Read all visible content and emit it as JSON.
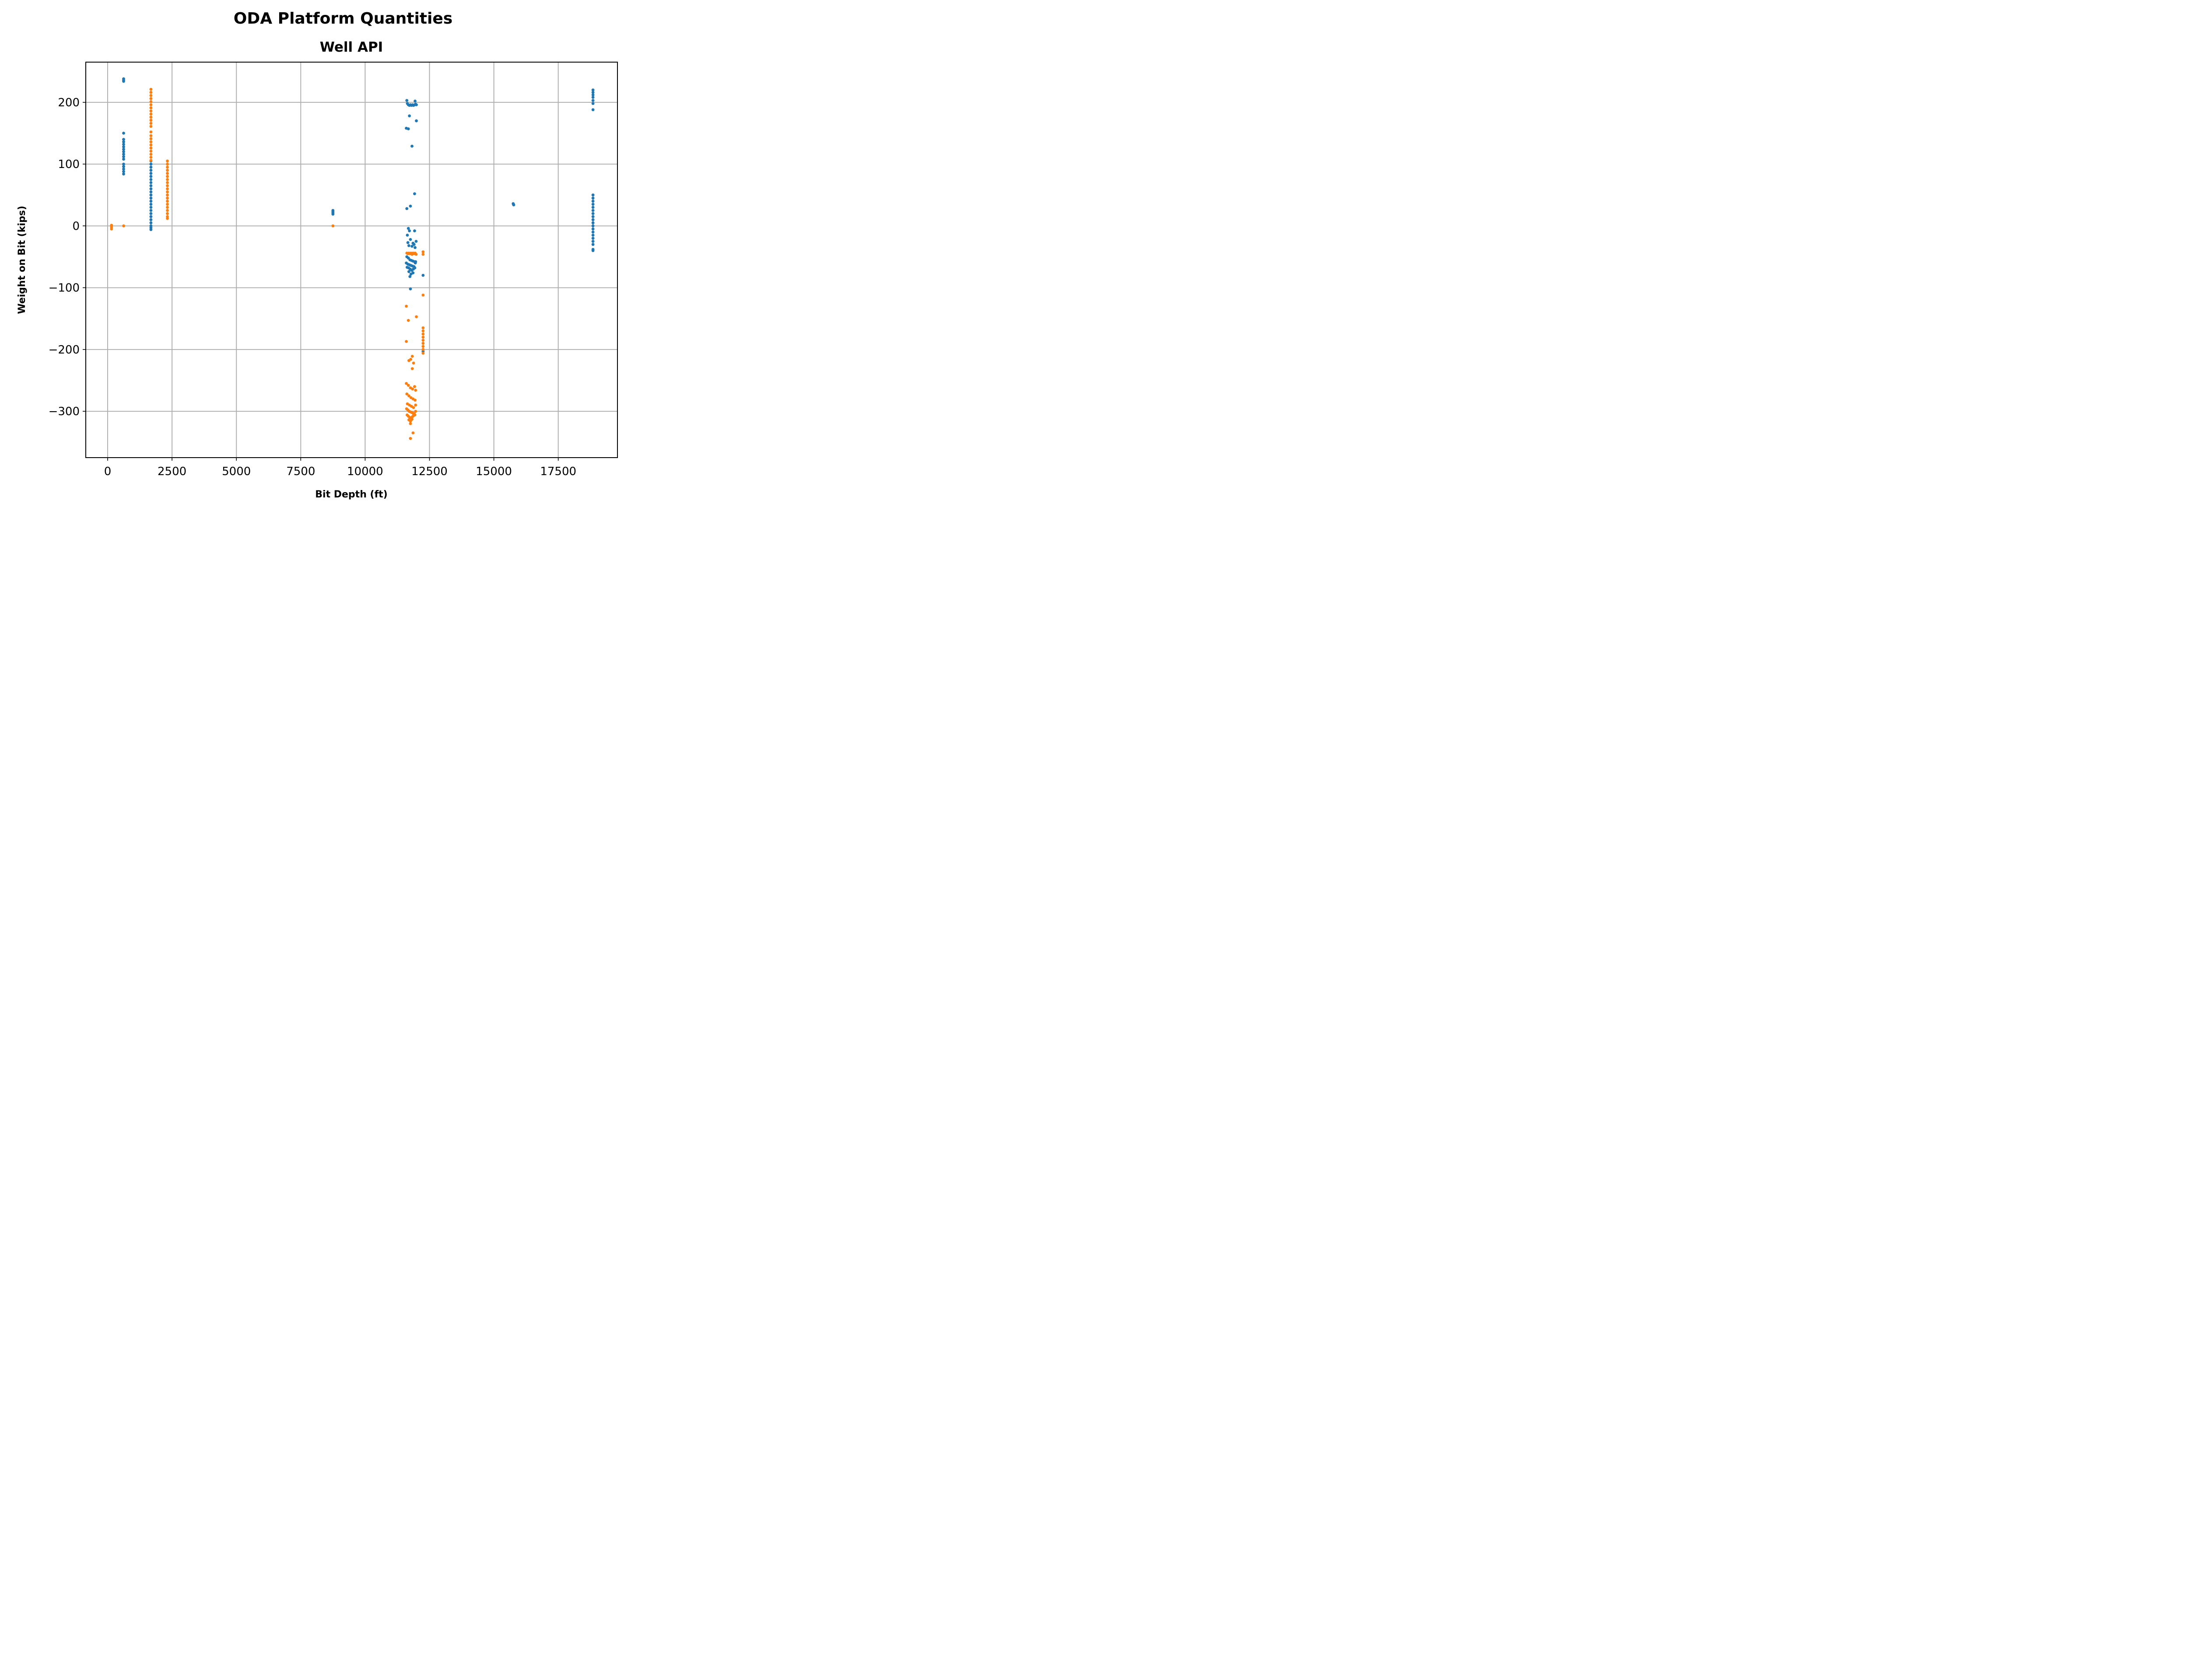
{
  "chart_data": {
    "type": "scatter",
    "suptitle": "ODA Platform Quantities",
    "title": "Well API",
    "xlabel": "Bit Depth (ft)",
    "ylabel": "Weight on Bit (kips)",
    "xlim": [
      -850,
      19800
    ],
    "ylim": [
      -375,
      265
    ],
    "xticks": [
      0,
      2500,
      5000,
      7500,
      10000,
      12500,
      15000,
      17500
    ],
    "xtick_labels": [
      "0",
      "2500",
      "5000",
      "7500",
      "10000",
      "12500",
      "15000",
      "17500"
    ],
    "yticks": [
      -300,
      -200,
      -100,
      0,
      100,
      200
    ],
    "ytick_labels": [
      "−300",
      "−200",
      "−100",
      "0",
      "100",
      "200"
    ],
    "grid": true,
    "legend": null,
    "series": [
      {
        "color": "#1f77b4",
        "points": [
          [
            620,
            238
          ],
          [
            620,
            236
          ],
          [
            620,
            234
          ],
          [
            620,
            150
          ],
          [
            620,
            140
          ],
          [
            620,
            136
          ],
          [
            620,
            132
          ],
          [
            620,
            128
          ],
          [
            620,
            124
          ],
          [
            620,
            120
          ],
          [
            620,
            116
          ],
          [
            620,
            112
          ],
          [
            620,
            108
          ],
          [
            620,
            100
          ],
          [
            620,
            96
          ],
          [
            620,
            92
          ],
          [
            620,
            88
          ],
          [
            620,
            84
          ],
          [
            1680,
            105
          ],
          [
            1680,
            100
          ],
          [
            1680,
            95
          ],
          [
            1680,
            90
          ],
          [
            1680,
            85
          ],
          [
            1680,
            80
          ],
          [
            1680,
            75
          ],
          [
            1680,
            70
          ],
          [
            1680,
            65
          ],
          [
            1680,
            60
          ],
          [
            1680,
            55
          ],
          [
            1680,
            50
          ],
          [
            1680,
            45
          ],
          [
            1680,
            40
          ],
          [
            1680,
            35
          ],
          [
            1680,
            30
          ],
          [
            1680,
            25
          ],
          [
            1680,
            20
          ],
          [
            1680,
            15
          ],
          [
            1680,
            10
          ],
          [
            1680,
            5
          ],
          [
            1680,
            0
          ],
          [
            1680,
            -3
          ],
          [
            1680,
            -6
          ],
          [
            8750,
            25
          ],
          [
            8750,
            23
          ],
          [
            8750,
            21
          ],
          [
            8750,
            19
          ],
          [
            11620,
            203
          ],
          [
            11640,
            198
          ],
          [
            11680,
            196
          ],
          [
            11720,
            195
          ],
          [
            11760,
            196
          ],
          [
            11800,
            195
          ],
          [
            11840,
            196
          ],
          [
            11880,
            195
          ],
          [
            11920,
            196
          ],
          [
            11940,
            202
          ],
          [
            11960,
            197
          ],
          [
            11990,
            196
          ],
          [
            11720,
            178
          ],
          [
            11990,
            170
          ],
          [
            11600,
            158
          ],
          [
            11680,
            157
          ],
          [
            11820,
            129
          ],
          [
            11920,
            52
          ],
          [
            11760,
            32
          ],
          [
            11620,
            28
          ],
          [
            11680,
            -4
          ],
          [
            11720,
            -8
          ],
          [
            11920,
            -8
          ],
          [
            11640,
            -15
          ],
          [
            11760,
            -22
          ],
          [
            11980,
            -25
          ],
          [
            11660,
            -27
          ],
          [
            11860,
            -28
          ],
          [
            11900,
            -30
          ],
          [
            11700,
            -32
          ],
          [
            11820,
            -33
          ],
          [
            11940,
            -35
          ],
          [
            11620,
            -50
          ],
          [
            11680,
            -52
          ],
          [
            11740,
            -55
          ],
          [
            11800,
            -56
          ],
          [
            11860,
            -57
          ],
          [
            11920,
            -58
          ],
          [
            11960,
            -58
          ],
          [
            11600,
            -60
          ],
          [
            11660,
            -62
          ],
          [
            11720,
            -63
          ],
          [
            11780,
            -64
          ],
          [
            11840,
            -65
          ],
          [
            11900,
            -66
          ],
          [
            11950,
            -60
          ],
          [
            11630,
            -67
          ],
          [
            11690,
            -68
          ],
          [
            11750,
            -70
          ],
          [
            11810,
            -72
          ],
          [
            11870,
            -70
          ],
          [
            11930,
            -68
          ],
          [
            11700,
            -74
          ],
          [
            11780,
            -78
          ],
          [
            11860,
            -76
          ],
          [
            11740,
            -82
          ],
          [
            12250,
            -80
          ],
          [
            11760,
            -102
          ],
          [
            12250,
            -203
          ],
          [
            15750,
            36
          ],
          [
            15760,
            35
          ],
          [
            15770,
            34
          ],
          [
            18850,
            220
          ],
          [
            18850,
            216
          ],
          [
            18850,
            212
          ],
          [
            18850,
            208
          ],
          [
            18850,
            203
          ],
          [
            18850,
            198
          ],
          [
            18850,
            188
          ],
          [
            18850,
            50
          ],
          [
            18850,
            45
          ],
          [
            18850,
            40
          ],
          [
            18850,
            35
          ],
          [
            18850,
            30
          ],
          [
            18850,
            25
          ],
          [
            18850,
            20
          ],
          [
            18850,
            15
          ],
          [
            18850,
            10
          ],
          [
            18850,
            5
          ],
          [
            18850,
            0
          ],
          [
            18850,
            -5
          ],
          [
            18850,
            -10
          ],
          [
            18850,
            -15
          ],
          [
            18850,
            -20
          ],
          [
            18850,
            -25
          ],
          [
            18850,
            -30
          ],
          [
            18850,
            -38
          ],
          [
            18850,
            -40
          ]
        ]
      },
      {
        "color": "#ff7f0e",
        "points": [
          [
            150,
            1
          ],
          [
            150,
            -2
          ],
          [
            150,
            -5
          ],
          [
            620,
            0
          ],
          [
            1680,
            221
          ],
          [
            1680,
            216
          ],
          [
            1680,
            211
          ],
          [
            1680,
            206
          ],
          [
            1680,
            201
          ],
          [
            1680,
            196
          ],
          [
            1680,
            191
          ],
          [
            1680,
            186
          ],
          [
            1680,
            181
          ],
          [
            1680,
            176
          ],
          [
            1680,
            171
          ],
          [
            1680,
            166
          ],
          [
            1680,
            161
          ],
          [
            1680,
            152
          ],
          [
            1680,
            146
          ],
          [
            1680,
            141
          ],
          [
            1680,
            136
          ],
          [
            1680,
            131
          ],
          [
            1680,
            126
          ],
          [
            1680,
            121
          ],
          [
            1680,
            116
          ],
          [
            1680,
            111
          ],
          [
            1680,
            106
          ],
          [
            2320,
            105
          ],
          [
            2320,
            100
          ],
          [
            2320,
            95
          ],
          [
            2320,
            90
          ],
          [
            2320,
            85
          ],
          [
            2320,
            80
          ],
          [
            2320,
            75
          ],
          [
            2320,
            70
          ],
          [
            2320,
            65
          ],
          [
            2320,
            60
          ],
          [
            2320,
            55
          ],
          [
            2320,
            50
          ],
          [
            2320,
            45
          ],
          [
            2320,
            40
          ],
          [
            2320,
            35
          ],
          [
            2320,
            30
          ],
          [
            2320,
            25
          ],
          [
            2320,
            20
          ],
          [
            2320,
            15
          ],
          [
            2320,
            12
          ],
          [
            8750,
            0
          ],
          [
            11620,
            -44
          ],
          [
            11660,
            -45
          ],
          [
            11700,
            -44
          ],
          [
            11740,
            -45
          ],
          [
            11780,
            -44
          ],
          [
            11820,
            -46
          ],
          [
            11860,
            -44
          ],
          [
            11900,
            -45
          ],
          [
            11940,
            -44
          ],
          [
            11980,
            -46
          ],
          [
            12250,
            -42
          ],
          [
            12250,
            -46
          ],
          [
            11600,
            -130
          ],
          [
            11680,
            -153
          ],
          [
            11990,
            -147
          ],
          [
            12250,
            -112
          ],
          [
            12250,
            -165
          ],
          [
            12250,
            -170
          ],
          [
            12250,
            -175
          ],
          [
            12250,
            -180
          ],
          [
            12250,
            -185
          ],
          [
            12250,
            -190
          ],
          [
            12250,
            -195
          ],
          [
            12250,
            -200
          ],
          [
            12250,
            -206
          ],
          [
            11600,
            -187
          ],
          [
            11830,
            -211
          ],
          [
            11700,
            -218
          ],
          [
            11770,
            -216
          ],
          [
            11880,
            -222
          ],
          [
            11830,
            -231
          ],
          [
            11600,
            -255
          ],
          [
            11680,
            -258
          ],
          [
            11760,
            -262
          ],
          [
            11840,
            -264
          ],
          [
            11920,
            -260
          ],
          [
            11960,
            -266
          ],
          [
            11620,
            -272
          ],
          [
            11700,
            -275
          ],
          [
            11780,
            -278
          ],
          [
            11860,
            -280
          ],
          [
            11940,
            -282
          ],
          [
            11640,
            -288
          ],
          [
            11720,
            -290
          ],
          [
            11800,
            -292
          ],
          [
            11880,
            -294
          ],
          [
            11960,
            -290
          ],
          [
            11610,
            -296
          ],
          [
            11660,
            -298
          ],
          [
            11710,
            -300
          ],
          [
            11760,
            -301
          ],
          [
            11810,
            -302
          ],
          [
            11860,
            -303
          ],
          [
            11910,
            -304
          ],
          [
            11960,
            -300
          ],
          [
            11630,
            -306
          ],
          [
            11680,
            -308
          ],
          [
            11730,
            -310
          ],
          [
            11780,
            -311
          ],
          [
            11830,
            -309
          ],
          [
            11880,
            -307
          ],
          [
            11930,
            -306
          ],
          [
            11700,
            -314
          ],
          [
            11760,
            -316
          ],
          [
            11820,
            -313
          ],
          [
            11760,
            -320
          ],
          [
            11860,
            -335
          ],
          [
            11760,
            -344
          ]
        ]
      }
    ]
  }
}
